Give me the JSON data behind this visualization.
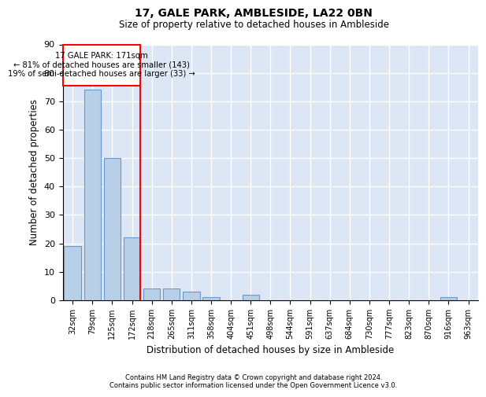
{
  "title": "17, GALE PARK, AMBLESIDE, LA22 0BN",
  "subtitle": "Size of property relative to detached houses in Ambleside",
  "xlabel": "Distribution of detached houses by size in Ambleside",
  "ylabel": "Number of detached properties",
  "categories": [
    "32sqm",
    "79sqm",
    "125sqm",
    "172sqm",
    "218sqm",
    "265sqm",
    "311sqm",
    "358sqm",
    "404sqm",
    "451sqm",
    "498sqm",
    "544sqm",
    "591sqm",
    "637sqm",
    "684sqm",
    "730sqm",
    "777sqm",
    "823sqm",
    "870sqm",
    "916sqm",
    "963sqm"
  ],
  "values": [
    19,
    74,
    50,
    22,
    4,
    4,
    3,
    1,
    0,
    2,
    0,
    0,
    0,
    0,
    0,
    0,
    0,
    0,
    0,
    1,
    0
  ],
  "bar_color": "#b8cfe8",
  "bar_edge_color": "#6699cc",
  "background_color": "#dce6f5",
  "grid_color": "#ffffff",
  "vline_color": "red",
  "annotation_line1": "17 GALE PARK: 171sqm",
  "annotation_line2": "← 81% of detached houses are smaller (143)",
  "annotation_line3": "19% of semi-detached houses are larger (33) →",
  "annotation_box_color": "red",
  "footer": "Contains HM Land Registry data © Crown copyright and database right 2024.\nContains public sector information licensed under the Open Government Licence v3.0.",
  "ylim": [
    0,
    90
  ],
  "yticks": [
    0,
    10,
    20,
    30,
    40,
    50,
    60,
    70,
    80,
    90
  ]
}
